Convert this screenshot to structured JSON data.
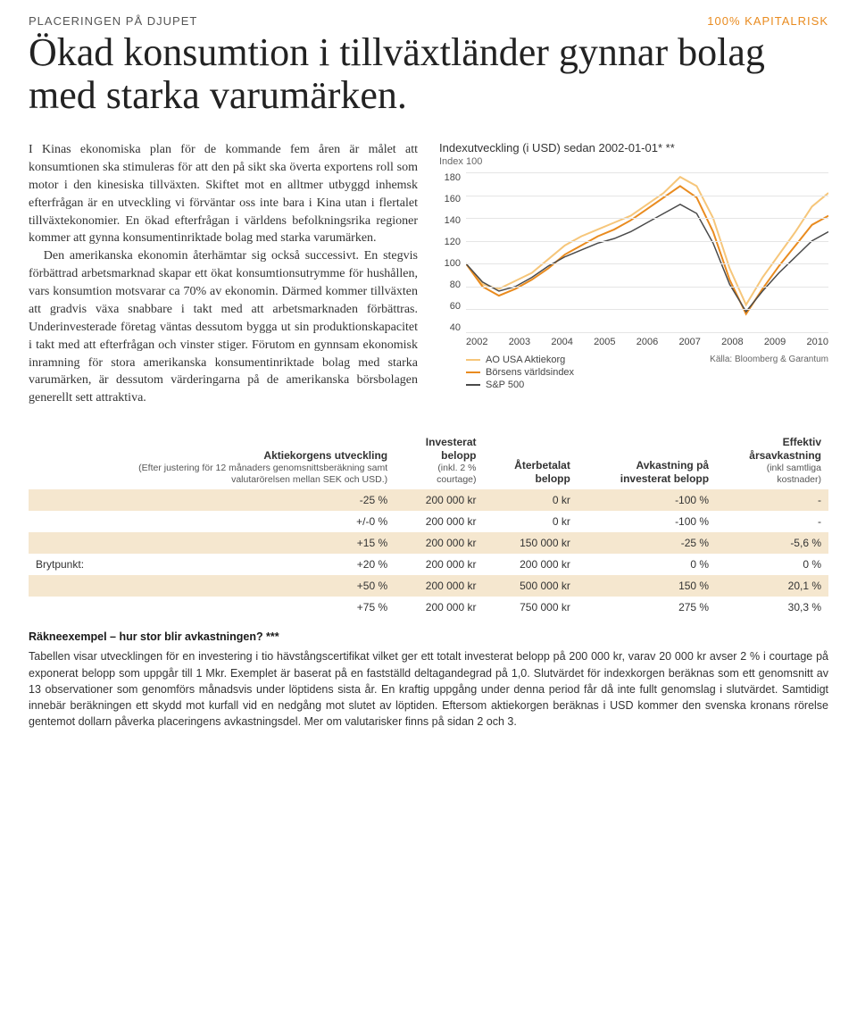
{
  "header": {
    "eyebrow": "PLACERINGEN PÅ DJUPET",
    "risk_badge": "100% KAPITALRISK",
    "headline": "Ökad konsumtion i tillväxtländer gynnar bolag med starka varumärken."
  },
  "body": {
    "p1": "I Kinas ekonomiska plan för de kommande fem åren är målet att konsumtionen ska stimuleras för att den på sikt ska överta exportens roll som motor i den kinesiska tillväxten. Skiftet mot en alltmer utbyggd inhemsk efterfrågan är en utveckling vi förväntar oss inte bara i Kina utan i flertalet tillväxtekonomier. En ökad efterfrågan i världens befolkningsrika regioner kommer att gynna konsumentinriktade bolag med starka varumärken.",
    "p2": "Den amerikanska ekonomin återhämtar sig också successivt. En stegvis förbättrad arbetsmarknad skapar ett ökat konsumtionsutrymme för hushållen, vars konsumtion motsvarar ca 70% av ekonomin. Därmed kommer tillväxten att gradvis växa snabbare i takt med att arbetsmarknaden förbättras. Underinvesterade företag väntas dessutom bygga ut sin produktionskapacitet i takt med att efterfrågan och vinster stiger. Förutom en gynnsam ekonomisk inramning för stora amerikanska konsumentinriktade bolag med starka varumärken, är dessutom värderingarna på de amerikanska börsbolagen generellt sett attraktiva."
  },
  "chart": {
    "title": "Indexutveckling (i USD) sedan 2002-01-01* **",
    "subtitle": "Index 100",
    "type": "line",
    "background_color": "#ffffff",
    "grid_color": "#e5e5e5",
    "ylim": [
      40,
      180
    ],
    "ytick_step": 20,
    "yticks": [
      "180",
      "160",
      "140",
      "120",
      "100",
      "80",
      "60",
      "40"
    ],
    "xticks": [
      "2002",
      "2003",
      "2004",
      "2005",
      "2006",
      "2007",
      "2008",
      "2009",
      "2010"
    ],
    "series": [
      {
        "name": "AO USA Aktiekorg",
        "color": "#f6c67a",
        "line_width": 2,
        "values": [
          100,
          82,
          78,
          85,
          92,
          104,
          116,
          124,
          130,
          136,
          142,
          152,
          162,
          176,
          168,
          140,
          96,
          64,
          88,
          108,
          128,
          150,
          162
        ]
      },
      {
        "name": "Börsens världsindex",
        "color": "#e98b1f",
        "line_width": 2,
        "values": [
          100,
          80,
          72,
          78,
          86,
          96,
          108,
          116,
          124,
          130,
          138,
          148,
          158,
          168,
          158,
          128,
          86,
          56,
          78,
          98,
          116,
          134,
          142
        ]
      },
      {
        "name": "S&P 500",
        "color": "#4a4a4a",
        "line_width": 1.5,
        "values": [
          100,
          84,
          76,
          80,
          88,
          98,
          106,
          112,
          118,
          122,
          128,
          136,
          144,
          152,
          144,
          118,
          82,
          58,
          76,
          92,
          106,
          120,
          128
        ]
      }
    ],
    "legend": [
      "AO USA Aktiekorg",
      "Börsens världsindex",
      "S&P 500"
    ],
    "source": "Källa: Bloomberg & Garantum"
  },
  "table": {
    "columns": [
      {
        "label": "Aktiekorgens utveckling",
        "sub": "(Efter justering för 12 månaders genomsnittsberäkning samt valutarörelsen mellan SEK och USD.)",
        "align": "right"
      },
      {
        "label": "Investerat belopp",
        "sub": "(inkl. 2 % courtage)",
        "align": "right"
      },
      {
        "label": "Återbetalat belopp",
        "sub": "",
        "align": "right"
      },
      {
        "label": "Avkastning på investerat belopp",
        "sub": "",
        "align": "right"
      },
      {
        "label": "Effektiv årsavkastning",
        "sub": "(inkl samtliga kostnader)",
        "align": "right"
      }
    ],
    "rows": [
      {
        "shade": true,
        "prefix": "",
        "cells": [
          "-25 %",
          "200 000 kr",
          "0 kr",
          "-100 %",
          "-"
        ]
      },
      {
        "shade": false,
        "prefix": "",
        "cells": [
          "+/-0 %",
          "200 000 kr",
          "0 kr",
          "-100 %",
          "-"
        ]
      },
      {
        "shade": true,
        "prefix": "",
        "cells": [
          "+15 %",
          "200 000 kr",
          "150 000 kr",
          "-25 %",
          "-5,6 %"
        ]
      },
      {
        "shade": false,
        "prefix": "Brytpunkt:",
        "cells": [
          "+20 %",
          "200 000 kr",
          "200 000 kr",
          "0 %",
          "0 %"
        ]
      },
      {
        "shade": true,
        "prefix": "",
        "cells": [
          "+50 %",
          "200 000 kr",
          "500 000 kr",
          "150 %",
          "20,1 %"
        ]
      },
      {
        "shade": false,
        "prefix": "",
        "cells": [
          "+75 %",
          "200 000 kr",
          "750 000 kr",
          "275 %",
          "30,3 %"
        ]
      }
    ]
  },
  "footnote": {
    "title": "Räkneexempel – hur stor blir avkastningen? ***",
    "body": "Tabellen visar utvecklingen för en investering i tio hävstångscertifikat vilket ger ett totalt investerat belopp på 200 000 kr, varav 20 000 kr avser 2 % i courtage på exponerat belopp som uppgår till 1 Mkr. Exemplet är baserat på en fastställd deltagandegrad på 1,0. Slutvärdet för indexkorgen beräknas som ett genomsnitt av 13 observationer som genomförs månadsvis under löptidens sista år. En kraftig uppgång under denna period får då inte fullt genomslag i slutvärdet. Samtidigt innebär beräkningen ett skydd mot kurfall vid en nedgång mot slutet av löptiden. Eftersom aktiekorgen beräknas i USD kommer den svenska kronans rörelse gentemot dollarn påverka placeringens avkastningsdel. Mer om valutarisker finns på sidan 2 och 3."
  }
}
